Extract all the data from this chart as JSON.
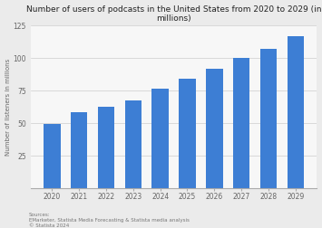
{
  "title": "Number of users of podcasts in the United States from 2020 to 2029 (in millions)",
  "years": [
    "2020",
    "2021",
    "2022",
    "2023",
    "2024",
    "2025",
    "2026",
    "2027",
    "2028",
    "2029"
  ],
  "values": [
    49.0,
    57.9,
    62.0,
    67.5,
    75.9,
    84.0,
    91.6,
    99.8,
    106.8,
    116.0
  ],
  "bar_color": "#3d7ed4",
  "ylabel": "Number of listeners in millions",
  "ylim": [
    0,
    125
  ],
  "yticks": [
    25,
    50,
    75,
    100,
    125
  ],
  "source_line1": "Sources:",
  "source_line2": "EMarketer, Statista Media Forecasting & Statista media analysis",
  "source_line3": "© Statista 2024",
  "title_fontsize": 6.5,
  "label_fontsize": 5.0,
  "tick_fontsize": 5.5,
  "source_fontsize": 4.0,
  "background_color": "#ebebeb",
  "plot_bg_color": "#f7f7f7"
}
